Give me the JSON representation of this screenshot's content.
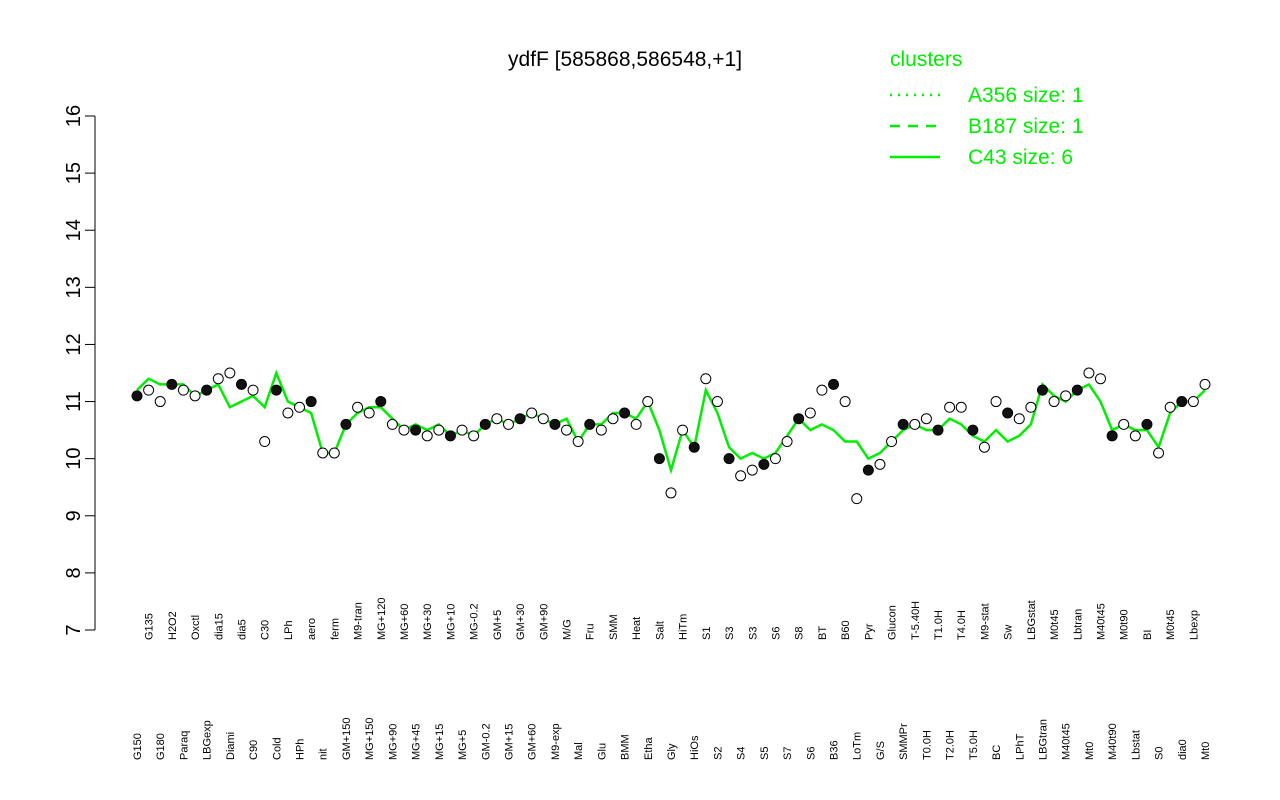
{
  "chart_data": {
    "type": "line",
    "title": "ydfF [585868,586548,+1]",
    "categories": [
      "G150",
      "G135",
      "G180",
      "H2O2",
      "Paraq",
      "Oxctl",
      "LBGexp",
      "dia15",
      "Diami",
      "dia5",
      "C90",
      "C30",
      "Cold",
      "LPh",
      "HPh",
      "aero",
      "nit",
      "ferm",
      "GM+150",
      "M9-tran",
      "MG+150",
      "MG+120",
      "MG+90",
      "MG+60",
      "MG+45",
      "MG+30",
      "MG+15",
      "MG+10",
      "MG+5",
      "MG-0.2",
      "GM-0.2",
      "GM+5",
      "GM+15",
      "GM+30",
      "GM+60",
      "GM+90",
      "M9-exp",
      "M/G",
      "Mal",
      "Fru",
      "Glu",
      "SMM",
      "BMM",
      "Heat",
      "Etha",
      "Salt",
      "Gly",
      "HiTm",
      "HiOs",
      "S1",
      "S2",
      "S3",
      "S4",
      "S3",
      "S5",
      "S6",
      "S7",
      "S8",
      "S6",
      "BT",
      "B36",
      "B60",
      "LoTm",
      "Pyr",
      "G/S",
      "Glucon",
      "SMMPr",
      "T-5.40H",
      "T0.0H",
      "T1.0H",
      "T2.0H",
      "T4.0H",
      "T5.0H",
      "M9-stat",
      "BC",
      "Sw",
      "LPhT",
      "LBGstat",
      "LBGtran",
      "M0t45",
      "M40t45",
      "Lbtran",
      "Mt0",
      "M40t45",
      "M40t90",
      "M0t90",
      "Lbstat",
      "BI",
      "S0",
      "M0t45",
      "dia0",
      "Lbexp",
      "Mt0"
    ],
    "values": [
      11.1,
      11.2,
      11.0,
      11.3,
      11.2,
      11.1,
      11.2,
      11.4,
      11.5,
      11.3,
      11.2,
      10.3,
      11.2,
      10.8,
      10.9,
      11.0,
      10.1,
      10.1,
      10.6,
      10.9,
      10.8,
      11.0,
      10.6,
      10.5,
      10.5,
      10.4,
      10.5,
      10.4,
      10.5,
      10.4,
      10.6,
      10.7,
      10.6,
      10.7,
      10.8,
      10.7,
      10.6,
      10.5,
      10.3,
      10.6,
      10.5,
      10.7,
      10.8,
      10.6,
      11.0,
      10.0,
      9.4,
      10.5,
      10.2,
      11.4,
      11.0,
      10.0,
      9.7,
      9.8,
      9.9,
      10.0,
      10.3,
      10.7,
      10.8,
      11.2,
      11.3,
      11.0,
      9.3,
      9.8,
      9.9,
      10.3,
      10.6,
      10.6,
      10.7,
      10.5,
      10.9,
      10.9,
      10.5,
      10.2,
      11.0,
      10.8,
      10.7,
      10.9,
      11.2,
      11.0,
      11.1,
      11.2,
      11.5,
      11.4,
      10.4,
      10.6,
      10.4,
      10.6,
      10.1,
      10.9,
      11.0,
      11.0,
      11.3
    ],
    "series": [
      {
        "name": "C43 size: 6",
        "color": "#00ee00",
        "values": [
          11.2,
          11.4,
          11.3,
          11.3,
          11.3,
          11.1,
          11.2,
          11.3,
          10.9,
          11.0,
          11.1,
          10.9,
          11.5,
          11.0,
          10.9,
          10.8,
          10.1,
          10.1,
          10.6,
          10.8,
          10.9,
          10.9,
          10.7,
          10.5,
          10.6,
          10.5,
          10.6,
          10.4,
          10.5,
          10.4,
          10.6,
          10.7,
          10.6,
          10.7,
          10.8,
          10.7,
          10.6,
          10.7,
          10.3,
          10.6,
          10.6,
          10.8,
          10.8,
          10.7,
          11.0,
          10.5,
          9.8,
          10.5,
          10.2,
          11.2,
          10.8,
          10.2,
          10.0,
          10.1,
          10.0,
          10.1,
          10.4,
          10.7,
          10.5,
          10.6,
          10.5,
          10.3,
          10.3,
          10.0,
          10.1,
          10.3,
          10.5,
          10.6,
          10.5,
          10.5,
          10.7,
          10.6,
          10.4,
          10.3,
          10.5,
          10.3,
          10.4,
          10.6,
          11.3,
          11.1,
          11.0,
          11.2,
          11.3,
          11.0,
          10.5,
          10.6,
          10.5,
          10.5,
          10.2,
          10.8,
          11.0,
          11.0,
          11.2
        ]
      }
    ],
    "ylim": [
      7,
      16
    ],
    "yticks": [
      7,
      8,
      9,
      10,
      11,
      12,
      13,
      14,
      15,
      16
    ],
    "legend": {
      "title": "clusters",
      "color": "#00ee00",
      "entries": [
        {
          "name": "A356 size: 1",
          "dash": "2,6"
        },
        {
          "name": "B187 size: 1",
          "dash": "10,8"
        },
        {
          "name": "C43 size: 6",
          "dash": "none"
        }
      ]
    }
  }
}
